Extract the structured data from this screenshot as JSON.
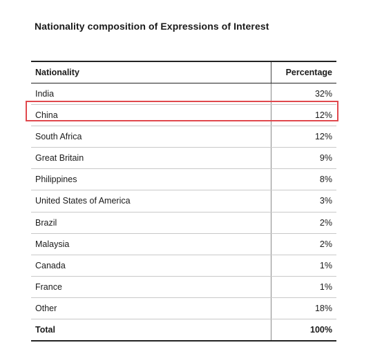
{
  "title": "Nationality composition of Expressions of Interest",
  "table": {
    "headers": {
      "nationality": "Nationality",
      "percentage": "Percentage"
    },
    "rows": [
      {
        "nationality": "India",
        "percentage": "32%"
      },
      {
        "nationality": "China",
        "percentage": "12%"
      },
      {
        "nationality": "South Africa",
        "percentage": "12%"
      },
      {
        "nationality": "Great Britain",
        "percentage": "9%"
      },
      {
        "nationality": "Philippines",
        "percentage": "8%"
      },
      {
        "nationality": "United States of America",
        "percentage": "3%"
      },
      {
        "nationality": "Brazil",
        "percentage": "2%"
      },
      {
        "nationality": "Malaysia",
        "percentage": "2%"
      },
      {
        "nationality": "Canada",
        "percentage": "1%"
      },
      {
        "nationality": "France",
        "percentage": "1%"
      },
      {
        "nationality": "Other",
        "percentage": "18%"
      }
    ],
    "total": {
      "nationality": "Total",
      "percentage": "100%"
    }
  },
  "highlight": {
    "row": "China",
    "color": "#e0474c"
  }
}
